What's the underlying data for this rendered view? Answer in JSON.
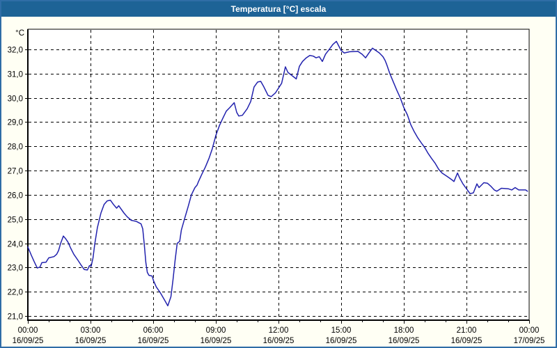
{
  "window": {
    "title": "Temperatura [°C] escala"
  },
  "colors": {
    "titlebar_bg": "#1d6396",
    "title_text": "#ffffff",
    "window_border": "#2f6da6",
    "content_bg": "#fffff4",
    "plot_bg": "#ffffff",
    "grid": "#000000",
    "axis": "#000000",
    "line": "#2121ad"
  },
  "chart_data": {
    "type": "line",
    "title": "Temperatura [°C] escala",
    "unit_label": "°C",
    "xlabel": "",
    "ylabel": "°C",
    "xlim": [
      0,
      24
    ],
    "ylim": [
      20.83,
      32.83
    ],
    "grid": "dashed",
    "legend": "none",
    "y_ticks": [
      {
        "v": 21,
        "label": "21,0"
      },
      {
        "v": 22,
        "label": "22,0"
      },
      {
        "v": 23,
        "label": "23,0"
      },
      {
        "v": 24,
        "label": "24,0"
      },
      {
        "v": 25,
        "label": "25,0"
      },
      {
        "v": 26,
        "label": "26,0"
      },
      {
        "v": 27,
        "label": "27,0"
      },
      {
        "v": 28,
        "label": "28,0"
      },
      {
        "v": 29,
        "label": "29,0"
      },
      {
        "v": 30,
        "label": "30,0"
      },
      {
        "v": 31,
        "label": "31,0"
      },
      {
        "v": 32,
        "label": "32,0"
      }
    ],
    "x_ticks": [
      {
        "h": 0,
        "time": "00:00",
        "date": "16/09/25"
      },
      {
        "h": 3,
        "time": "03:00",
        "date": "16/09/25"
      },
      {
        "h": 6,
        "time": "06:00",
        "date": "16/09/25"
      },
      {
        "h": 9,
        "time": "09:00",
        "date": "16/09/25"
      },
      {
        "h": 12,
        "time": "12:00",
        "date": "16/09/25"
      },
      {
        "h": 15,
        "time": "15:00",
        "date": "16/09/25"
      },
      {
        "h": 18,
        "time": "18:00",
        "date": "16/09/25"
      },
      {
        "h": 21,
        "time": "21:00",
        "date": "16/09/25"
      },
      {
        "h": 24,
        "time": "00:00",
        "date": "17/09/25"
      }
    ],
    "x_grid_hours": [
      3,
      6,
      9,
      12,
      15,
      18,
      21
    ],
    "x_minor_step": 1,
    "series": [
      {
        "name": "Temperatura",
        "color": "#2121ad",
        "points": [
          [
            0.0,
            23.85
          ],
          [
            0.17,
            23.5
          ],
          [
            0.3,
            23.25
          ],
          [
            0.45,
            22.98
          ],
          [
            0.58,
            23.02
          ],
          [
            0.67,
            23.2
          ],
          [
            0.87,
            23.22
          ],
          [
            1.0,
            23.4
          ],
          [
            1.25,
            23.45
          ],
          [
            1.38,
            23.55
          ],
          [
            1.47,
            23.7
          ],
          [
            1.57,
            24.0
          ],
          [
            1.7,
            24.3
          ],
          [
            1.8,
            24.2
          ],
          [
            1.92,
            24.05
          ],
          [
            2.05,
            23.8
          ],
          [
            2.2,
            23.55
          ],
          [
            2.4,
            23.3
          ],
          [
            2.55,
            23.1
          ],
          [
            2.7,
            22.92
          ],
          [
            2.85,
            22.9
          ],
          [
            2.95,
            23.08
          ],
          [
            3.03,
            23.05
          ],
          [
            3.12,
            23.4
          ],
          [
            3.2,
            23.95
          ],
          [
            3.33,
            24.65
          ],
          [
            3.5,
            25.25
          ],
          [
            3.65,
            25.6
          ],
          [
            3.8,
            25.75
          ],
          [
            3.95,
            25.78
          ],
          [
            4.1,
            25.6
          ],
          [
            4.25,
            25.45
          ],
          [
            4.35,
            25.55
          ],
          [
            4.6,
            25.25
          ],
          [
            4.75,
            25.1
          ],
          [
            4.95,
            24.95
          ],
          [
            5.2,
            24.9
          ],
          [
            5.42,
            24.8
          ],
          [
            5.5,
            24.6
          ],
          [
            5.58,
            23.9
          ],
          [
            5.65,
            23.2
          ],
          [
            5.72,
            22.8
          ],
          [
            5.8,
            22.68
          ],
          [
            5.95,
            22.65
          ],
          [
            6.02,
            22.45
          ],
          [
            6.15,
            22.2
          ],
          [
            6.35,
            21.95
          ],
          [
            6.55,
            21.65
          ],
          [
            6.7,
            21.42
          ],
          [
            6.85,
            21.8
          ],
          [
            6.95,
            22.5
          ],
          [
            7.05,
            23.3
          ],
          [
            7.15,
            24.0
          ],
          [
            7.27,
            24.08
          ],
          [
            7.35,
            24.55
          ],
          [
            7.5,
            25.0
          ],
          [
            7.67,
            25.5
          ],
          [
            7.83,
            26.0
          ],
          [
            8.0,
            26.3
          ],
          [
            8.1,
            26.4
          ],
          [
            8.17,
            26.55
          ],
          [
            8.33,
            26.85
          ],
          [
            8.5,
            27.15
          ],
          [
            8.67,
            27.5
          ],
          [
            8.83,
            27.9
          ],
          [
            9.0,
            28.45
          ],
          [
            9.17,
            28.85
          ],
          [
            9.33,
            29.15
          ],
          [
            9.5,
            29.45
          ],
          [
            9.67,
            29.6
          ],
          [
            9.88,
            29.8
          ],
          [
            10.0,
            29.4
          ],
          [
            10.1,
            29.25
          ],
          [
            10.27,
            29.28
          ],
          [
            10.5,
            29.55
          ],
          [
            10.67,
            29.85
          ],
          [
            10.83,
            30.45
          ],
          [
            11.0,
            30.65
          ],
          [
            11.15,
            30.68
          ],
          [
            11.3,
            30.45
          ],
          [
            11.5,
            30.1
          ],
          [
            11.65,
            30.05
          ],
          [
            11.85,
            30.2
          ],
          [
            12.0,
            30.4
          ],
          [
            12.15,
            30.6
          ],
          [
            12.33,
            31.28
          ],
          [
            12.45,
            31.05
          ],
          [
            12.6,
            30.95
          ],
          [
            12.85,
            30.78
          ],
          [
            13.0,
            31.3
          ],
          [
            13.15,
            31.5
          ],
          [
            13.33,
            31.65
          ],
          [
            13.5,
            31.75
          ],
          [
            13.67,
            31.72
          ],
          [
            13.8,
            31.65
          ],
          [
            13.95,
            31.7
          ],
          [
            14.1,
            31.5
          ],
          [
            14.25,
            31.8
          ],
          [
            14.43,
            32.0
          ],
          [
            14.6,
            32.2
          ],
          [
            14.77,
            32.33
          ],
          [
            15.0,
            31.95
          ],
          [
            15.15,
            31.85
          ],
          [
            15.4,
            31.9
          ],
          [
            15.8,
            31.92
          ],
          [
            16.0,
            31.8
          ],
          [
            16.17,
            31.65
          ],
          [
            16.33,
            31.85
          ],
          [
            16.5,
            32.05
          ],
          [
            16.67,
            31.95
          ],
          [
            16.83,
            31.85
          ],
          [
            17.0,
            31.7
          ],
          [
            17.1,
            31.55
          ],
          [
            17.17,
            31.4
          ],
          [
            17.33,
            31.0
          ],
          [
            17.5,
            30.65
          ],
          [
            17.67,
            30.3
          ],
          [
            17.83,
            30.0
          ],
          [
            18.0,
            29.6
          ],
          [
            18.17,
            29.3
          ],
          [
            18.33,
            28.9
          ],
          [
            18.5,
            28.6
          ],
          [
            18.67,
            28.35
          ],
          [
            18.83,
            28.15
          ],
          [
            19.0,
            27.95
          ],
          [
            19.17,
            27.7
          ],
          [
            19.33,
            27.5
          ],
          [
            19.5,
            27.3
          ],
          [
            19.67,
            27.05
          ],
          [
            19.83,
            26.9
          ],
          [
            20.0,
            26.8
          ],
          [
            20.17,
            26.7
          ],
          [
            20.33,
            26.6
          ],
          [
            20.4,
            26.55
          ],
          [
            20.57,
            26.9
          ],
          [
            20.67,
            26.7
          ],
          [
            20.83,
            26.45
          ],
          [
            21.0,
            26.25
          ],
          [
            21.17,
            26.05
          ],
          [
            21.33,
            26.08
          ],
          [
            21.5,
            26.45
          ],
          [
            21.6,
            26.3
          ],
          [
            21.83,
            26.5
          ],
          [
            22.0,
            26.48
          ],
          [
            22.17,
            26.35
          ],
          [
            22.33,
            26.2
          ],
          [
            22.45,
            26.15
          ],
          [
            22.67,
            26.27
          ],
          [
            23.0,
            26.25
          ],
          [
            23.17,
            26.2
          ],
          [
            23.33,
            26.3
          ],
          [
            23.5,
            26.2
          ],
          [
            23.83,
            26.2
          ],
          [
            23.92,
            26.15
          ]
        ]
      }
    ]
  }
}
